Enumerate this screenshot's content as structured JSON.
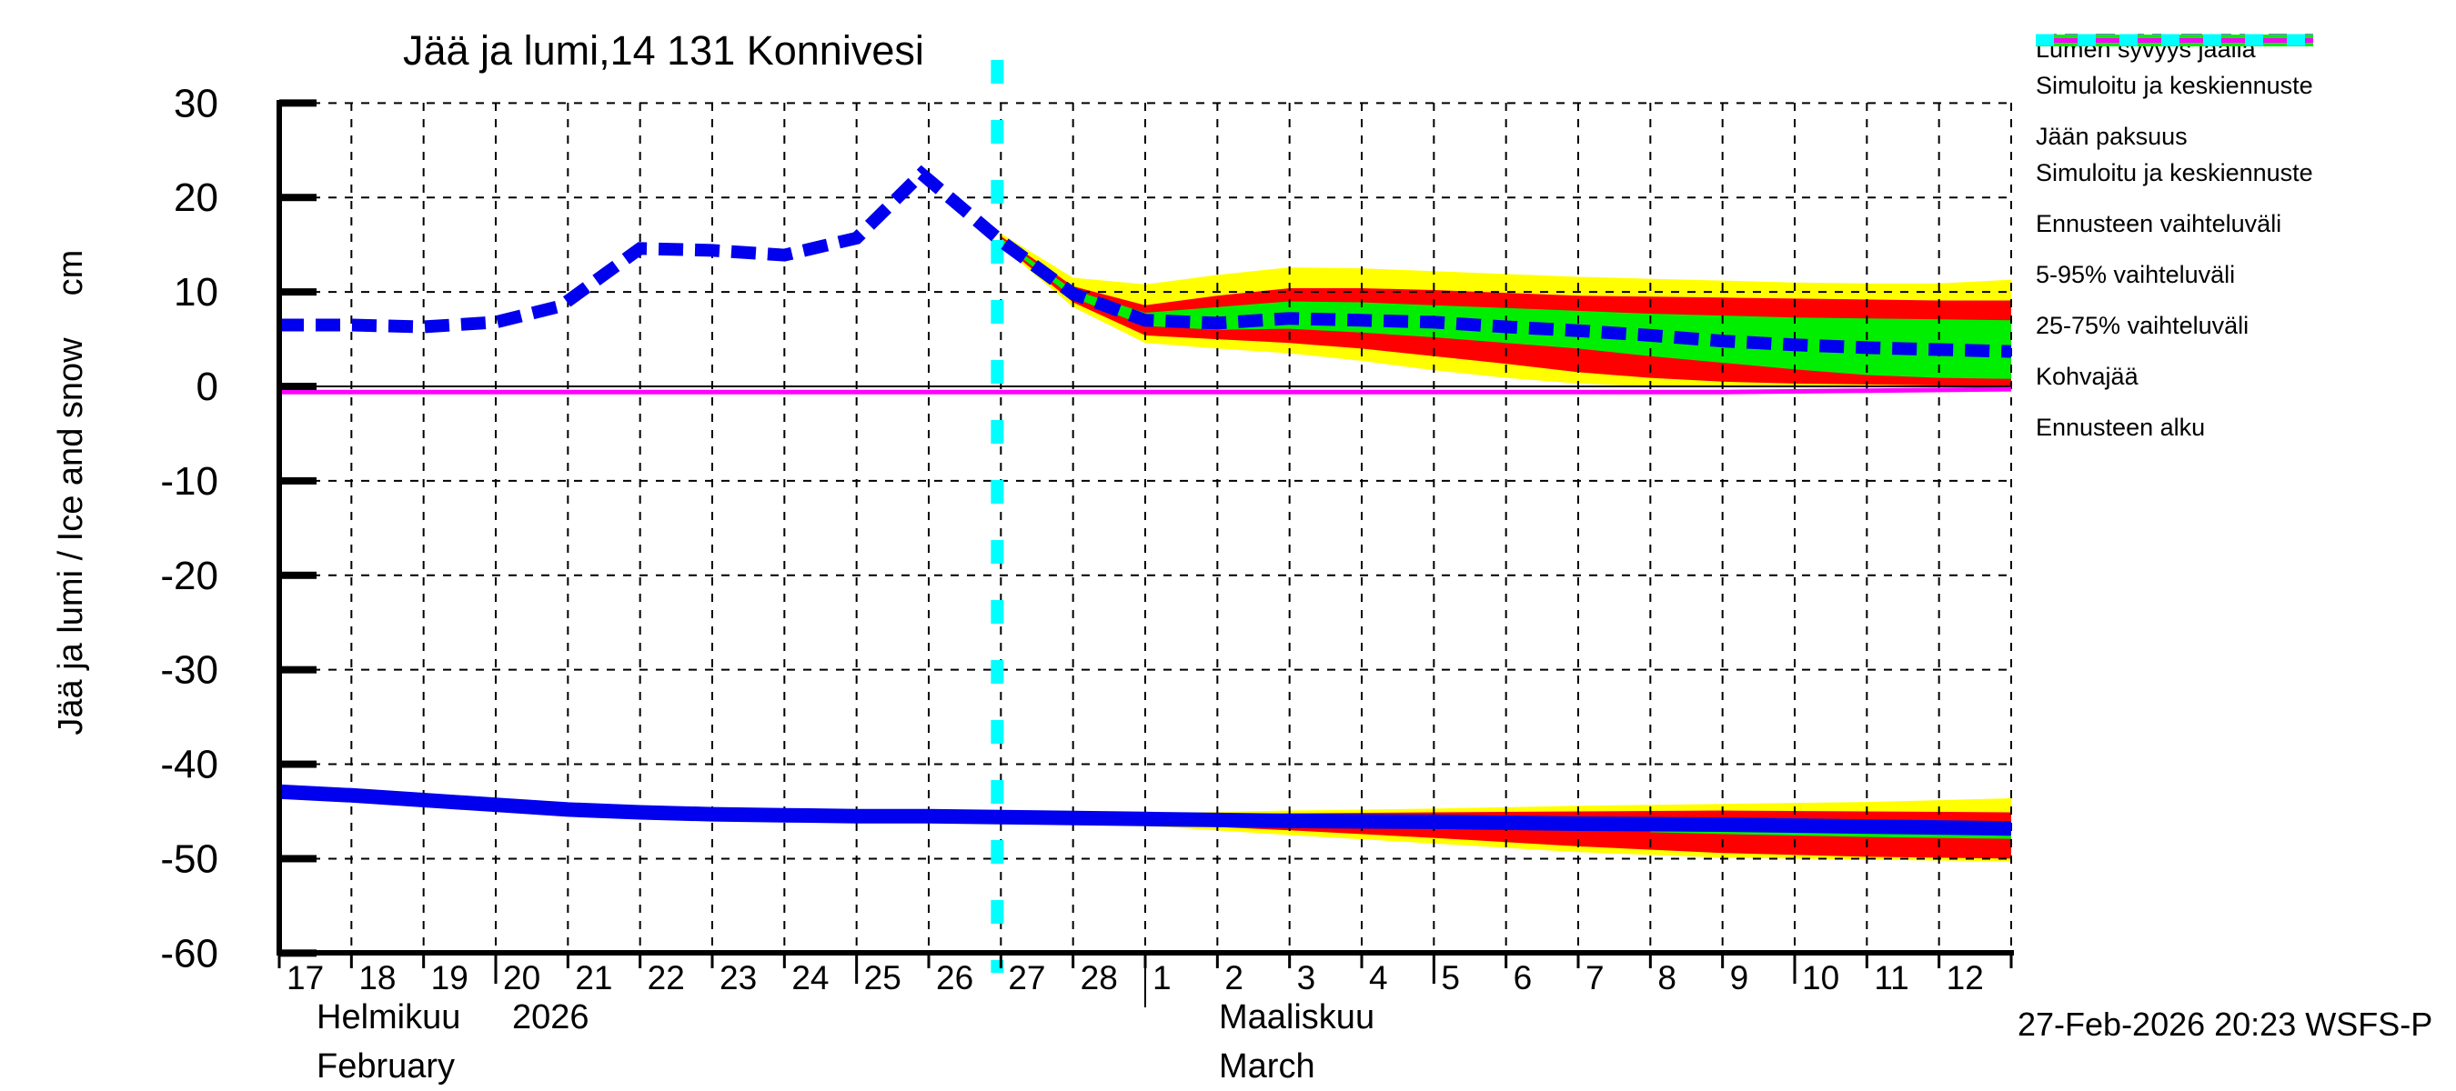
{
  "title": "Jää ja lumi,14 131 Konnivesi",
  "timestamp": "27-Feb-2026 20:23 WSFS-P",
  "y_axis": {
    "label": "Jää ja lumi / Ice and snow",
    "unit": "cm",
    "ticks": [
      30,
      20,
      10,
      0,
      -10,
      -20,
      -30,
      -40,
      -50,
      -60
    ]
  },
  "x_axis": {
    "feb_days": [
      17,
      18,
      19,
      20,
      21,
      22,
      23,
      24,
      25,
      26,
      27,
      28
    ],
    "mar_days": [
      1,
      2,
      3,
      4,
      5,
      6,
      7,
      8,
      9,
      10,
      11,
      12
    ],
    "month1_fi": "Helmikuu",
    "month1_year": "2026",
    "month1_en": "February",
    "month2_fi": "Maaliskuu",
    "month2_en": "March"
  },
  "legend": [
    {
      "label": "Lumen syvyys jäällä",
      "label2": "Simuloitu ja keskiennuste",
      "swatch": "blue-dashed"
    },
    {
      "label": "Jään paksuus",
      "label2": "Simuloitu ja keskiennuste",
      "swatch": "blue-solid"
    },
    {
      "label": "Ennusteen vaihteluväli",
      "label2": null,
      "swatch": "yellow"
    },
    {
      "label": "5-95% vaihteluväli",
      "label2": null,
      "swatch": "red"
    },
    {
      "label": "25-75% vaihteluväli",
      "label2": null,
      "swatch": "green"
    },
    {
      "label": "Kohvajää",
      "label2": null,
      "swatch": "magenta"
    },
    {
      "label": "Ennusteen alku",
      "label2": null,
      "swatch": "cyan-dashed"
    }
  ],
  "colors": {
    "blue": "#0000ee",
    "yellow": "#ffff00",
    "red": "#ff0000",
    "green": "#00ee00",
    "magenta": "#ff00ff",
    "cyan": "#00ffff",
    "black": "#000000"
  },
  "chart_data": {
    "type": "line",
    "title": "Jää ja lumi,14 131 Konnivesi",
    "ylabel": "Jää ja lumi / Ice and snow (cm)",
    "ylim": [
      -60,
      30
    ],
    "x_unit": "days since 17-Feb-2026 (0 = 17 Feb, 24 = 13 Mar)",
    "x_range": [
      0,
      24
    ],
    "grid": true,
    "forecast_start_x": 9.95,
    "month_separator_x": 12,
    "long_tick_x": [
      3,
      8,
      16,
      21
    ],
    "series": [
      {
        "name": "snow-depth-on-ice-simulated-mean-forecast",
        "style": "dashed",
        "color_key": "blue",
        "points": [
          [
            0,
            6.5
          ],
          [
            1,
            6.5
          ],
          [
            2,
            6.3
          ],
          [
            3,
            6.8
          ],
          [
            3.9,
            8.5
          ],
          [
            5,
            14.6
          ],
          [
            6,
            14.4
          ],
          [
            7,
            13.9
          ],
          [
            8,
            15.7
          ],
          [
            8.9,
            22.5
          ],
          [
            10,
            15.4
          ],
          [
            11,
            9.8
          ],
          [
            12,
            7.0
          ],
          [
            13,
            6.7
          ],
          [
            14,
            7.2
          ],
          [
            15,
            7.0
          ],
          [
            16,
            6.8
          ],
          [
            17,
            6.3
          ],
          [
            18,
            5.9
          ],
          [
            19,
            5.4
          ],
          [
            20,
            4.8
          ],
          [
            21,
            4.4
          ],
          [
            22,
            4.1
          ],
          [
            23,
            3.9
          ],
          [
            24,
            3.7
          ]
        ]
      },
      {
        "name": "ice-thickness-simulated-mean-forecast",
        "style": "solid",
        "color_key": "blue",
        "points": [
          [
            0,
            -42.9
          ],
          [
            1,
            -43.3
          ],
          [
            2,
            -43.8
          ],
          [
            3,
            -44.3
          ],
          [
            4,
            -44.8
          ],
          [
            5,
            -45.1
          ],
          [
            6,
            -45.3
          ],
          [
            7,
            -45.4
          ],
          [
            8,
            -45.5
          ],
          [
            9,
            -45.5
          ],
          [
            10,
            -45.6
          ],
          [
            12,
            -45.8
          ],
          [
            14,
            -46.0
          ],
          [
            16,
            -46.1
          ],
          [
            18,
            -46.3
          ],
          [
            20,
            -46.4
          ],
          [
            22,
            -46.6
          ],
          [
            24,
            -46.8
          ]
        ]
      },
      {
        "name": "kohvajaa",
        "style": "solid",
        "color_key": "magenta",
        "points": [
          [
            0,
            -0.6
          ],
          [
            20,
            -0.6
          ],
          [
            22,
            -0.45
          ],
          [
            24,
            -0.3
          ]
        ]
      }
    ],
    "bands": [
      {
        "name": "snow-forecast-range",
        "color_key": "yellow",
        "points": [
          [
            10,
            16.2,
            14.9
          ],
          [
            11,
            11.5,
            8.4
          ],
          [
            12,
            10.8,
            4.6
          ],
          [
            13,
            11.8,
            4.0
          ],
          [
            14,
            12.6,
            3.5
          ],
          [
            15,
            12.5,
            2.7
          ],
          [
            16,
            12.2,
            1.7
          ],
          [
            17,
            11.9,
            0.9
          ],
          [
            18,
            11.6,
            0.3
          ],
          [
            19,
            11.4,
            0.0
          ],
          [
            20,
            11.2,
            0.0
          ],
          [
            21,
            11.0,
            0.0
          ],
          [
            22,
            10.9,
            0.0
          ],
          [
            23,
            10.9,
            0.0
          ],
          [
            24,
            11.3,
            0.0
          ]
        ]
      },
      {
        "name": "snow-5-95-range",
        "color_key": "red",
        "points": [
          [
            10,
            15.9,
            15.1
          ],
          [
            11,
            10.6,
            8.9
          ],
          [
            12,
            8.6,
            5.4
          ],
          [
            13,
            9.6,
            5.0
          ],
          [
            14,
            10.4,
            4.6
          ],
          [
            15,
            10.4,
            4.0
          ],
          [
            16,
            10.2,
            3.2
          ],
          [
            17,
            9.9,
            2.4
          ],
          [
            18,
            9.6,
            1.5
          ],
          [
            19,
            9.5,
            0.9
          ],
          [
            20,
            9.4,
            0.5
          ],
          [
            21,
            9.3,
            0.3
          ],
          [
            22,
            9.2,
            0.2
          ],
          [
            23,
            9.1,
            0.1
          ],
          [
            24,
            9.1,
            0.1
          ]
        ]
      },
      {
        "name": "snow-25-75-range",
        "color_key": "green",
        "points": [
          [
            10,
            15.7,
            15.3
          ],
          [
            11,
            10.2,
            9.4
          ],
          [
            12,
            7.8,
            6.4
          ],
          [
            13,
            8.4,
            6.0
          ],
          [
            14,
            9.0,
            6.1
          ],
          [
            15,
            8.9,
            5.7
          ],
          [
            16,
            8.6,
            5.2
          ],
          [
            17,
            8.3,
            4.6
          ],
          [
            18,
            8.0,
            4.0
          ],
          [
            19,
            7.7,
            3.2
          ],
          [
            20,
            7.5,
            2.5
          ],
          [
            21,
            7.3,
            1.8
          ],
          [
            22,
            7.2,
            1.2
          ],
          [
            23,
            7.1,
            0.9
          ],
          [
            24,
            7.0,
            0.8
          ]
        ]
      },
      {
        "name": "ice-forecast-range",
        "color_key": "yellow",
        "points": [
          [
            10,
            -45.2,
            -46.0
          ],
          [
            12,
            -45.2,
            -46.5
          ],
          [
            14,
            -44.9,
            -47.5
          ],
          [
            16,
            -44.7,
            -48.4
          ],
          [
            18,
            -44.4,
            -49.3
          ],
          [
            20,
            -44.2,
            -49.9
          ],
          [
            22,
            -44.0,
            -50.1
          ],
          [
            24,
            -43.6,
            -50.3
          ]
        ]
      },
      {
        "name": "ice-5-95-range",
        "color_key": "red",
        "points": [
          [
            10,
            -45.3,
            -45.9
          ],
          [
            12,
            -45.4,
            -46.3
          ],
          [
            14,
            -45.2,
            -47.0
          ],
          [
            16,
            -45.1,
            -47.8
          ],
          [
            18,
            -45.0,
            -48.7
          ],
          [
            20,
            -44.9,
            -49.4
          ],
          [
            22,
            -45.0,
            -49.8
          ],
          [
            24,
            -45.1,
            -50.0
          ]
        ]
      },
      {
        "name": "ice-25-75-range",
        "color_key": "green",
        "points": [
          [
            19,
            -46.9,
            -47.2
          ],
          [
            20,
            -47.0,
            -47.4
          ],
          [
            22,
            -47.2,
            -47.7
          ],
          [
            24,
            -47.3,
            -47.9
          ]
        ]
      }
    ]
  }
}
